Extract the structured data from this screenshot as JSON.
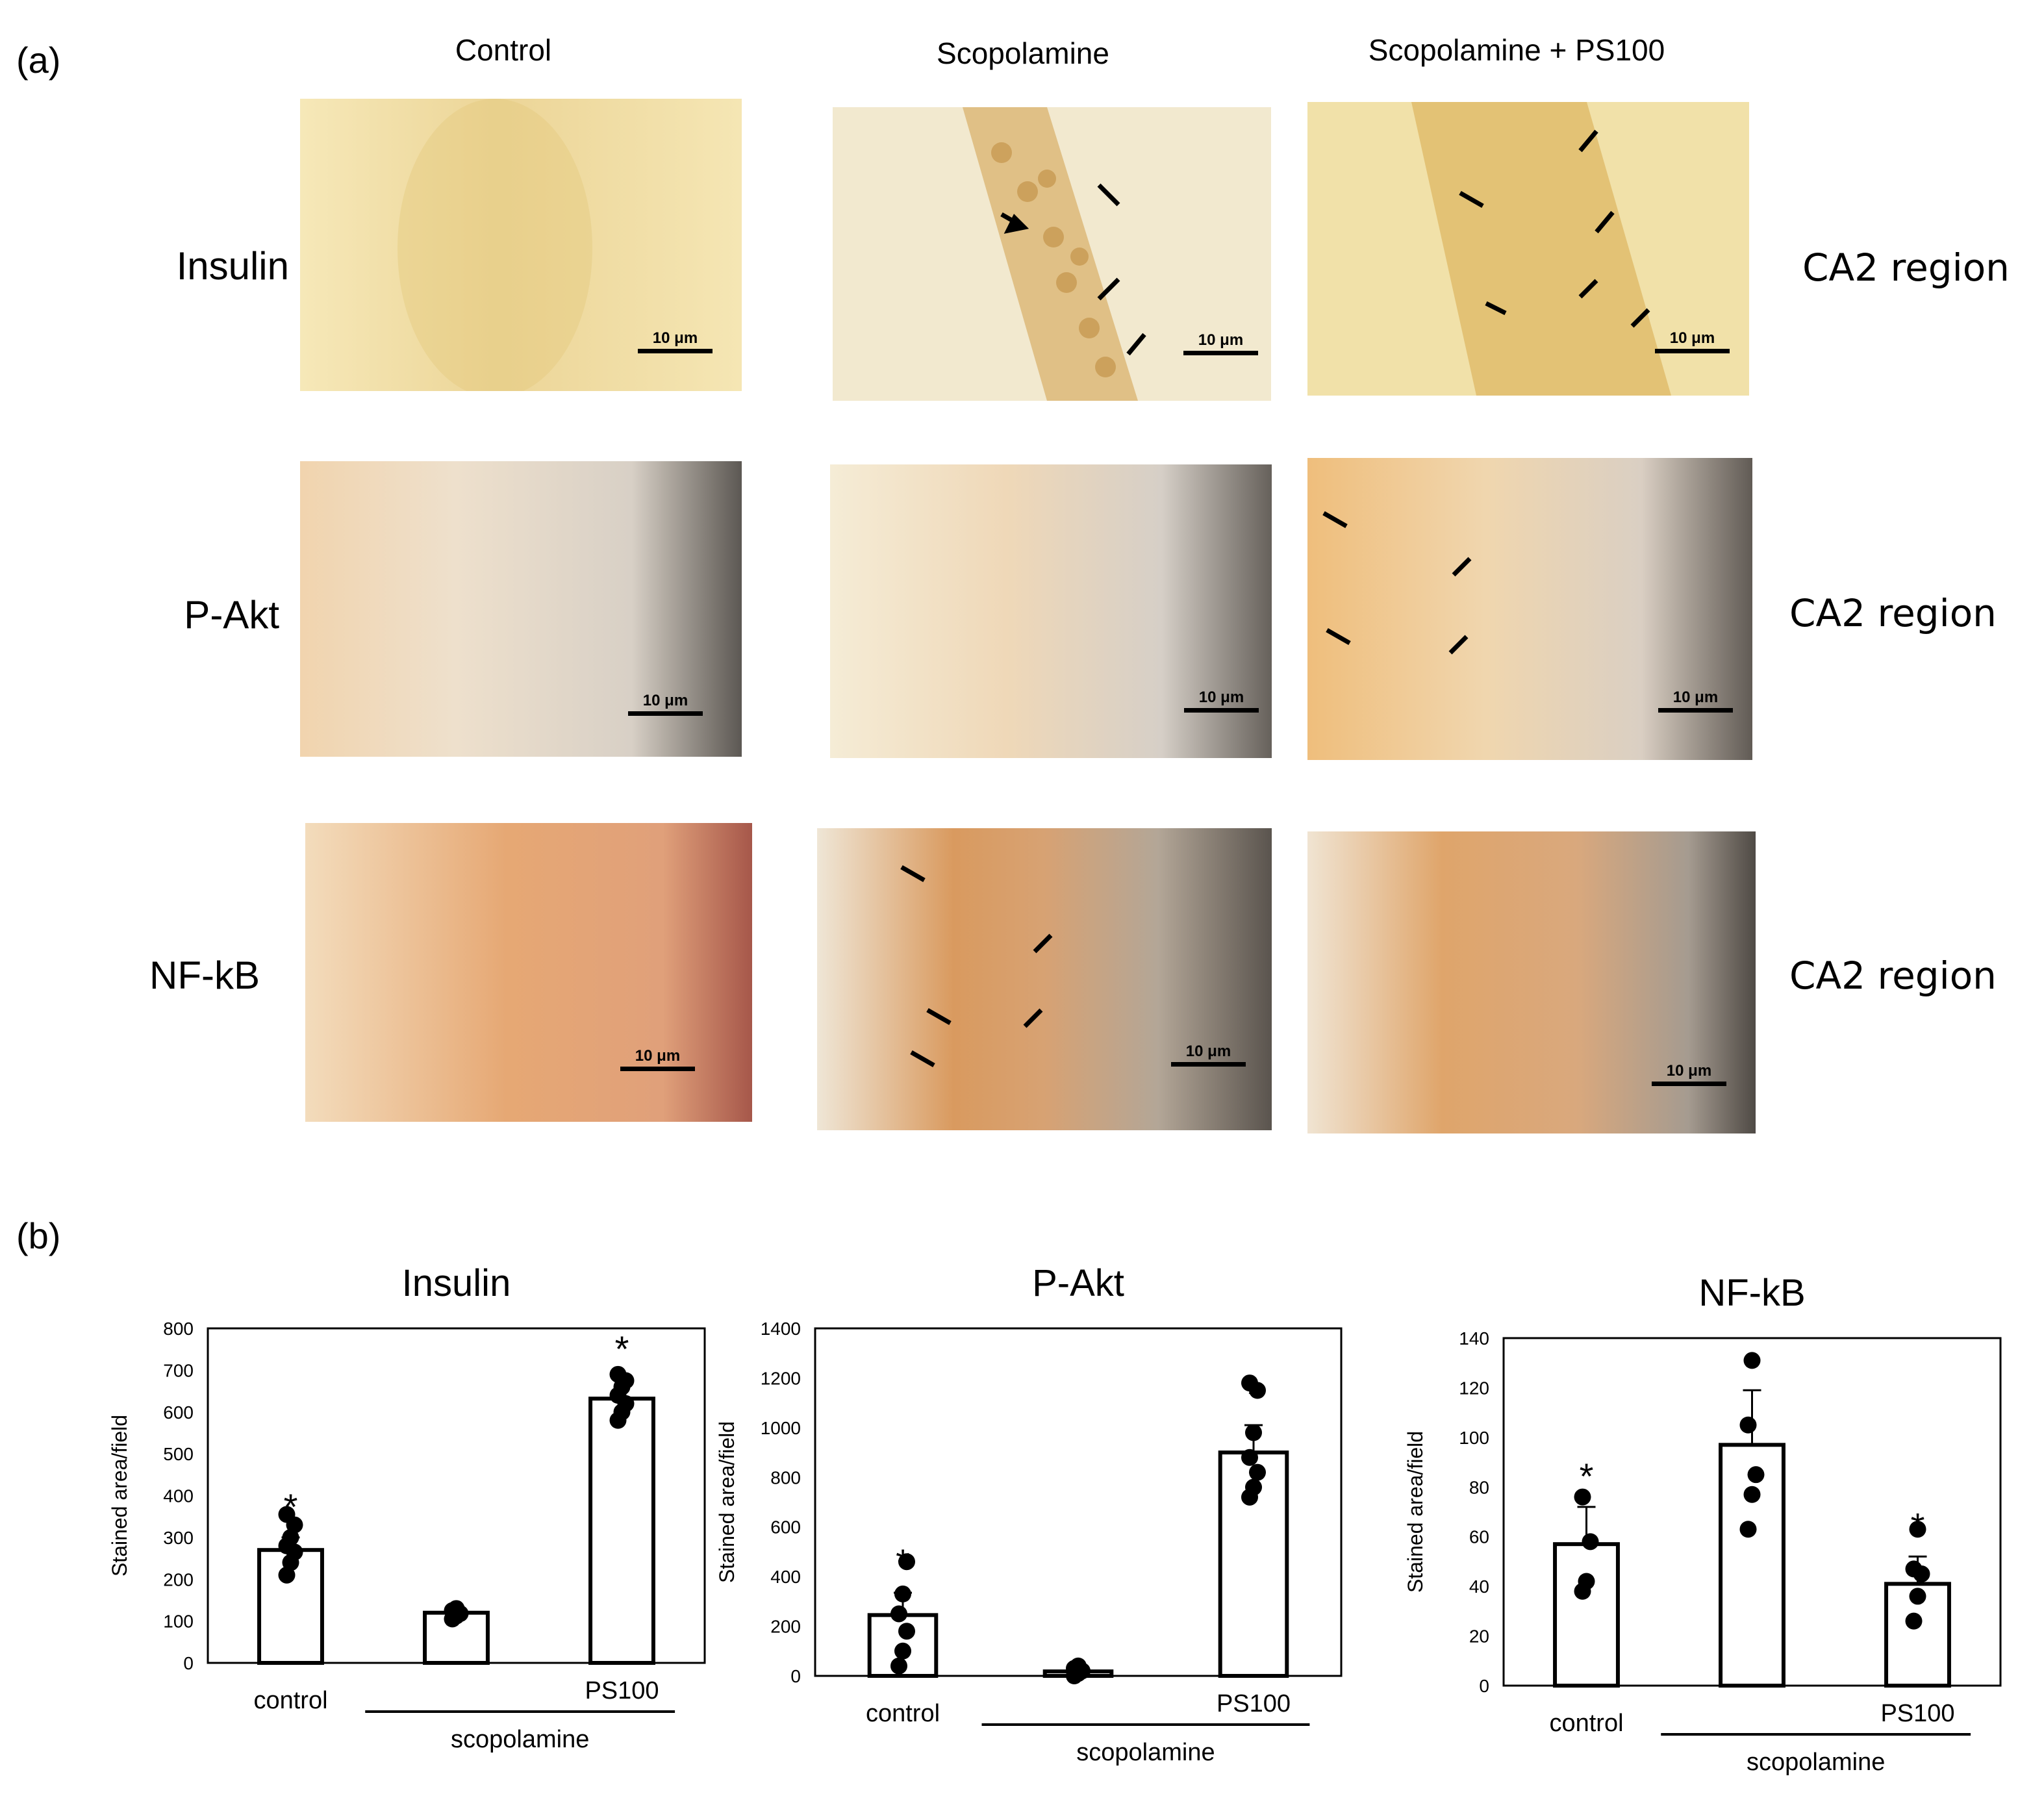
{
  "panel_a": {
    "label": "(a)",
    "columns": [
      "Control",
      "Scopolamine",
      "Scopolamine + PS100"
    ],
    "rows": [
      "Insulin",
      "P-Akt",
      "NF-kB"
    ],
    "region_label": "CA2 region",
    "scale_bar": "10 μm",
    "colors": {
      "insulin_stain": "#f3dfa7",
      "pakt_stain": "#ecc89c",
      "nfkb_stain": "#e3a66f",
      "arrow": "#000000"
    }
  },
  "panel_b": {
    "label": "(b)"
  },
  "chart_data": [
    {
      "type": "bar",
      "title": "Insulin",
      "ylabel": "Stained area/field",
      "ylim": [
        0,
        800
      ],
      "yticks": [
        0,
        100,
        200,
        300,
        400,
        500,
        600,
        700,
        800
      ],
      "categories": [
        "control",
        "",
        "PS100"
      ],
      "group_label": "scopolamine",
      "values": [
        270,
        120,
        632
      ],
      "error": [
        30,
        8,
        45
      ],
      "points": [
        [
          210,
          240,
          265,
          280,
          300,
          330,
          355
        ],
        [
          105,
          112,
          118,
          125,
          130
        ],
        [
          580,
          600,
          620,
          640,
          660,
          675,
          690
        ]
      ],
      "significance": [
        "*",
        "",
        "*"
      ]
    },
    {
      "type": "bar",
      "title": "P-Akt",
      "ylabel": "Stained area/field",
      "ylim": [
        0,
        1400
      ],
      "yticks": [
        0,
        200,
        400,
        600,
        800,
        1000,
        1200,
        1400
      ],
      "categories": [
        "control",
        "",
        "PS100"
      ],
      "group_label": "scopolamine",
      "values": [
        245,
        18,
        900
      ],
      "error": [
        90,
        8,
        110
      ],
      "points": [
        [
          40,
          100,
          180,
          250,
          330,
          460
        ],
        [
          0,
          10,
          20,
          30,
          40
        ],
        [
          720,
          760,
          820,
          880,
          980,
          1150,
          1180
        ]
      ],
      "significance": [
        "*",
        "",
        "*"
      ]
    },
    {
      "type": "bar",
      "title": "NF-kB",
      "ylabel": "Stained area/field",
      "ylim": [
        0,
        140
      ],
      "yticks": [
        0,
        20,
        40,
        60,
        80,
        100,
        120,
        140
      ],
      "categories": [
        "control",
        "",
        "PS100"
      ],
      "group_label": "scopolamine",
      "values": [
        57,
        97,
        41
      ],
      "error": [
        15,
        22,
        11
      ],
      "points": [
        [
          38,
          42,
          58,
          76
        ],
        [
          63,
          77,
          85,
          105,
          131
        ],
        [
          26,
          36,
          45,
          47,
          63
        ]
      ],
      "significance": [
        "*",
        "",
        "*"
      ]
    }
  ]
}
